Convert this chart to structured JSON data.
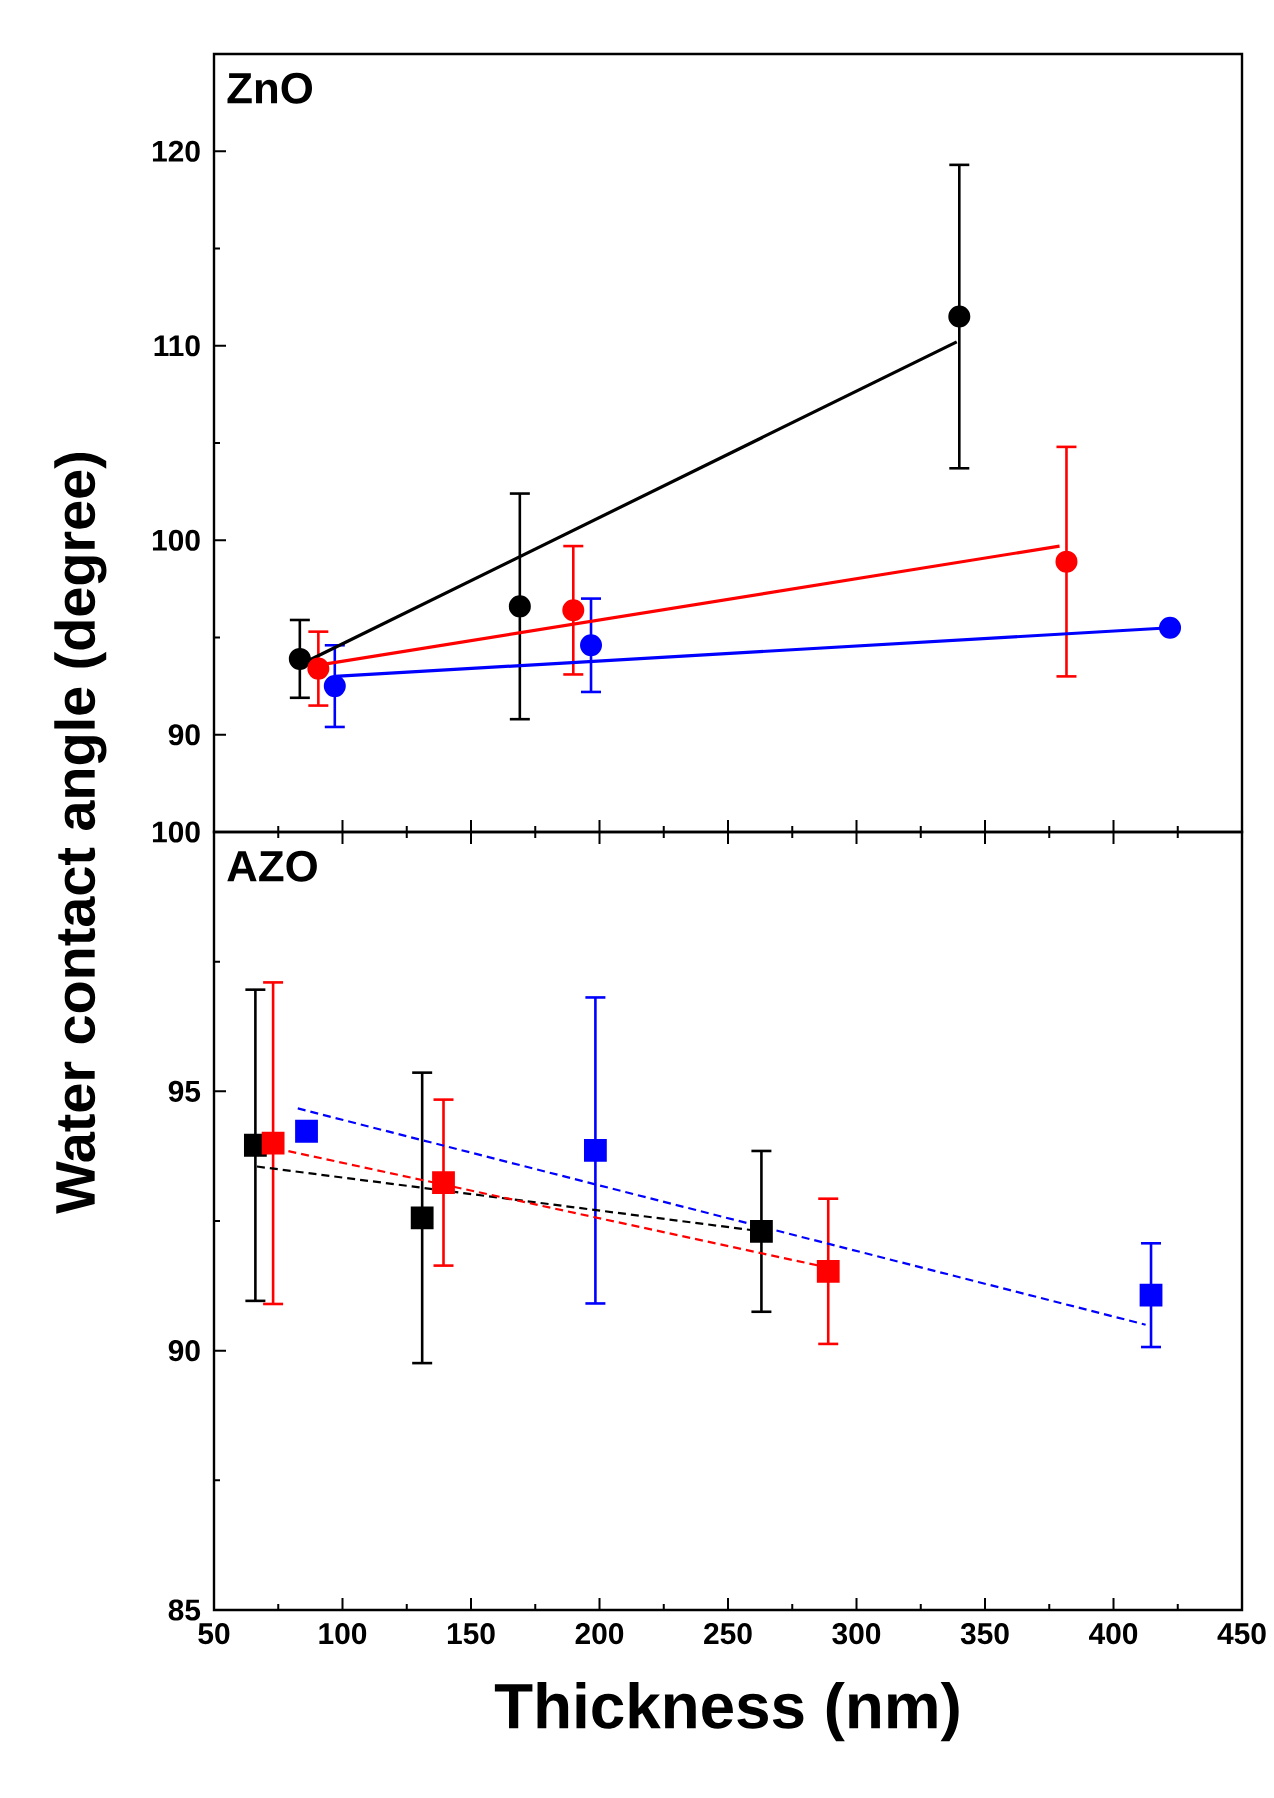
{
  "chart_data": [
    {
      "type": "scatter",
      "title": "ZnO",
      "ylabel": "Water contact angle (degree)",
      "xlim": [
        50,
        450
      ],
      "xticks": [
        50,
        100,
        150,
        200,
        250,
        300,
        350,
        400,
        450
      ],
      "ylim": [
        85,
        125
      ],
      "yticks": [
        90,
        100,
        110,
        120
      ],
      "tick_labels": "y",
      "series": [
        {
          "color": "#000000",
          "marker": "circle",
          "x": [
            83.4,
            169,
            340
          ],
          "values": [
            93.9,
            96.6,
            111.5
          ],
          "errors": [
            2.0,
            5.8,
            7.8
          ]
        },
        {
          "color": "#ff0000",
          "marker": "circle",
          "x": [
            90.6,
            189.8,
            381.7
          ],
          "values": [
            93.4,
            96.4,
            98.9
          ],
          "errors": [
            1.9,
            3.3,
            5.9
          ]
        },
        {
          "color": "#0000ff",
          "marker": "circle",
          "x": [
            97,
            196.7,
            422
          ],
          "values": [
            92.5,
            94.6,
            95.5
          ],
          "errors": [
            2.1,
            2.4,
            null
          ]
        },
        {
          "type": "line",
          "color": "#000000",
          "marker": "none",
          "line_style": "solid",
          "x": [
            85,
            339
          ],
          "values": [
            93.7,
            110.2
          ]
        },
        {
          "type": "line",
          "color": "#ff0000",
          "marker": "none",
          "line_style": "solid",
          "x": [
            87,
            379
          ],
          "values": [
            93.5,
            99.7
          ]
        },
        {
          "type": "line",
          "color": "#0000ff",
          "marker": "none",
          "line_style": "solid",
          "x": [
            97,
            422
          ],
          "values": [
            93.0,
            95.5
          ]
        }
      ]
    },
    {
      "type": "scatter",
      "title": "AZO",
      "xlabel": "Thickness (nm)",
      "xlim": [
        50,
        450
      ],
      "xticks": [
        50,
        100,
        150,
        200,
        250,
        300,
        350,
        400,
        450
      ],
      "ylim": [
        85,
        100
      ],
      "yticks": [
        85,
        90,
        95,
        100
      ],
      "series": [
        {
          "color": "#000000",
          "marker": "square",
          "x": [
            66.1,
            131,
            263
          ],
          "values": [
            93.96,
            92.56,
            92.3
          ],
          "errors": [
            3.0,
            2.8,
            1.55
          ]
        },
        {
          "color": "#ff0000",
          "marker": "square",
          "x": [
            73,
            139.3,
            289
          ],
          "values": [
            94.0,
            93.24,
            91.53
          ],
          "errors": [
            3.1,
            1.6,
            1.4
          ]
        },
        {
          "color": "#0000ff",
          "marker": "square",
          "x": [
            86,
            198.4,
            414.6
          ],
          "values": [
            94.23,
            93.86,
            91.07
          ],
          "errors": [
            null,
            2.95,
            1.0
          ]
        },
        {
          "type": "line",
          "color": "#000000",
          "marker": "none",
          "line_style": "dashed",
          "x": [
            66.7,
            263
          ],
          "values": [
            93.55,
            92.3
          ]
        },
        {
          "type": "line",
          "color": "#ff0000",
          "marker": "none",
          "line_style": "dashed",
          "x": [
            74,
            289
          ],
          "values": [
            93.9,
            91.6
          ]
        },
        {
          "type": "line",
          "color": "#0000ff",
          "marker": "none",
          "line_style": "dashed",
          "x": [
            82.6,
            412.5
          ],
          "values": [
            94.67,
            90.5
          ]
        }
      ]
    }
  ]
}
